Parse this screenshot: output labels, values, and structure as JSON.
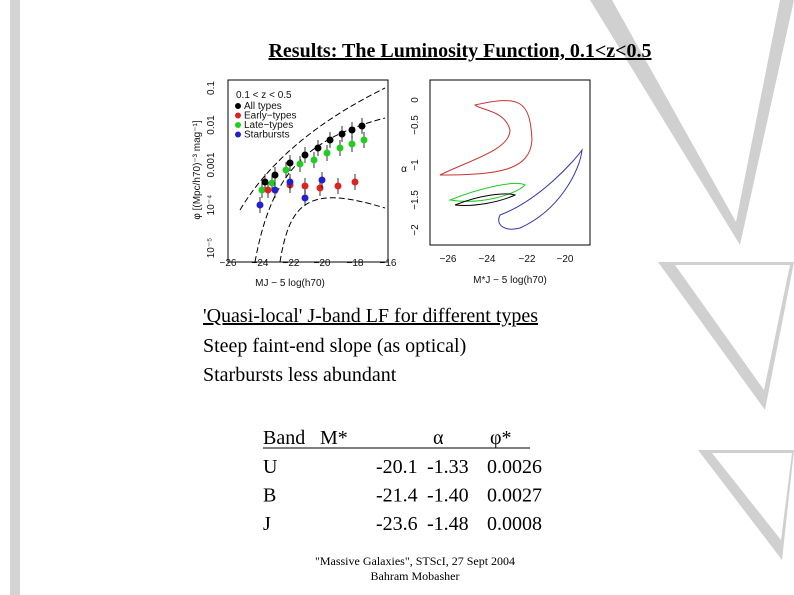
{
  "header": {
    "title": "Results: The Luminosity Function, 0.1<z<0.5"
  },
  "figure": {
    "left": {
      "y_label": "φ [(Mpc/h70)⁻³ mag⁻¹]",
      "x_label": "MJ − 5 log(h70)",
      "y_ticks": [
        "10⁻⁵",
        "10⁻⁴",
        "0.001",
        "0.01",
        "0.1"
      ],
      "x_ticks": [
        "−26",
        "−24",
        "−22",
        "−20",
        "−18",
        "−16"
      ],
      "legend_title": "0.1 < z < 0.5",
      "legend": [
        "All types",
        "Early−types",
        "Late−types",
        "Starbursts"
      ]
    },
    "right": {
      "y_label": "α",
      "x_label": "M*J − 5 log(h70)",
      "y_ticks": [
        "−2",
        "−1.5",
        "−1",
        "−0.5",
        "0"
      ],
      "x_ticks": [
        "−26",
        "−24",
        "−22",
        "−20"
      ]
    }
  },
  "bullets": [
    "'Quasi-local' J-band LF for different types",
    "Steep faint-end slope (as optical)",
    "Starbursts less abundant"
  ],
  "table": {
    "header": [
      "Band",
      "M*",
      "α",
      "φ*"
    ],
    "rows": [
      [
        "U",
        "-20.1",
        "-1.33",
        "0.0026"
      ],
      [
        "B",
        "-21.4",
        "-1.40",
        "0.0027"
      ],
      [
        "J",
        "-23.6",
        "-1.48",
        "0.0008"
      ]
    ]
  },
  "footer": {
    "line1": "\"Massive Galaxies\", STScI, 27 Sept 2004",
    "line2": "Bahram Mobasher"
  }
}
